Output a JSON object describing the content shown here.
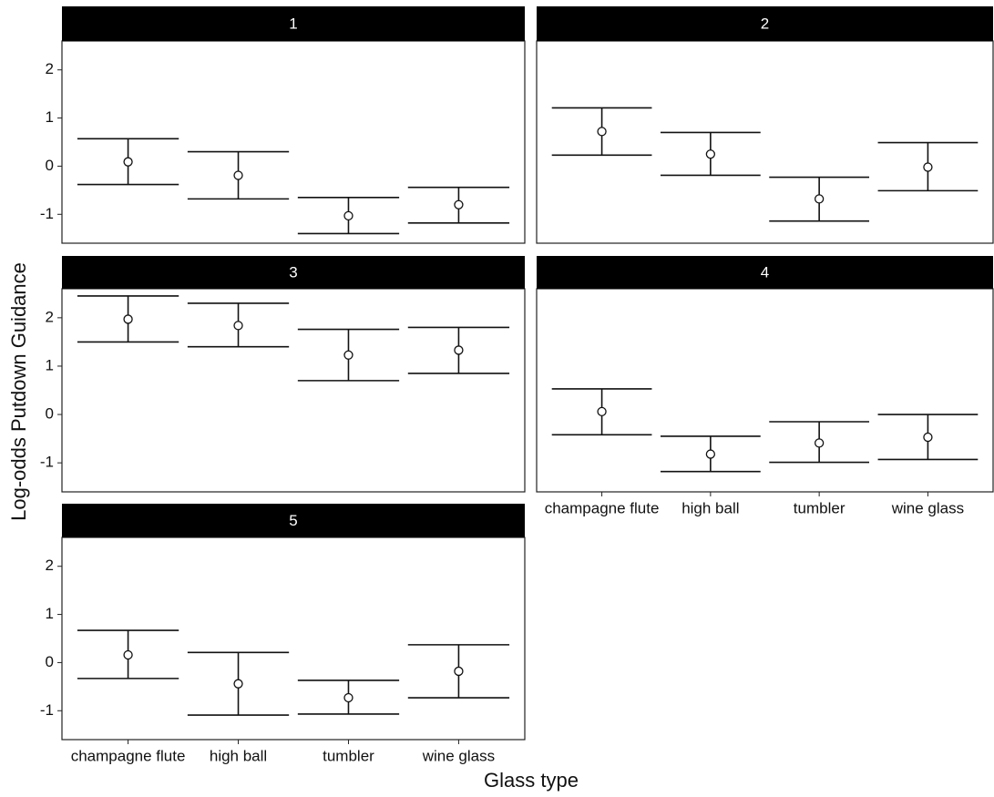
{
  "x_label": "Glass type",
  "y_label": "Log-odds Putdown Guidance",
  "chart_data": [
    {
      "type": "errorbar",
      "title": "1",
      "values": [
        0.09,
        -0.19,
        -1.03,
        -0.8
      ],
      "lower": [
        -0.38,
        -0.68,
        -1.4,
        -1.18
      ],
      "upper": [
        0.57,
        0.3,
        -0.65,
        -0.44
      ],
      "ylim": [
        -1.6,
        2.6
      ],
      "yticks": [
        -1,
        0,
        1,
        2
      ]
    },
    {
      "type": "errorbar",
      "title": "2",
      "values": [
        0.72,
        0.25,
        -0.68,
        -0.02
      ],
      "lower": [
        0.23,
        -0.19,
        -1.14,
        -0.51
      ],
      "upper": [
        1.21,
        0.7,
        -0.23,
        0.49
      ],
      "ylim": [
        -1.6,
        2.6
      ]
    },
    {
      "type": "errorbar",
      "title": "3",
      "values": [
        1.97,
        1.84,
        1.23,
        1.33
      ],
      "lower": [
        1.5,
        1.4,
        0.7,
        0.85
      ],
      "upper": [
        2.45,
        2.3,
        1.76,
        1.8
      ],
      "ylim": [
        -1.6,
        2.6
      ],
      "yticks": [
        -1,
        0,
        1,
        2
      ]
    },
    {
      "type": "errorbar",
      "title": "4",
      "categories": [
        "champagne flute",
        "high ball",
        "tumbler",
        "wine glass"
      ],
      "values": [
        0.06,
        -0.82,
        -0.59,
        -0.47
      ],
      "lower": [
        -0.42,
        -1.18,
        -0.99,
        -0.93
      ],
      "upper": [
        0.53,
        -0.45,
        -0.15,
        0
      ],
      "ylim": [
        -1.6,
        2.6
      ]
    },
    {
      "type": "errorbar",
      "title": "5",
      "categories": [
        "champagne flute",
        "high ball",
        "tumbler",
        "wine glass"
      ],
      "values": [
        0.16,
        -0.44,
        -0.73,
        -0.18
      ],
      "lower": [
        -0.33,
        -1.09,
        -1.07,
        -0.73
      ],
      "upper": [
        0.67,
        0.21,
        -0.37,
        0.37
      ],
      "ylim": [
        -1.6,
        2.6
      ],
      "yticks": [
        -1,
        0,
        1,
        2
      ]
    }
  ]
}
